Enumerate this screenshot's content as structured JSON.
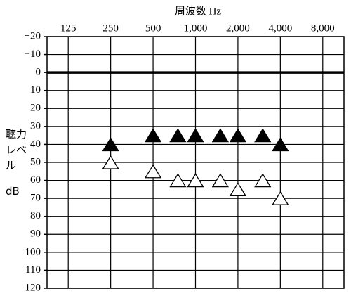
{
  "chart_data": {
    "type": "audiogram",
    "x_label": "周波数 Hz",
    "y_label": "聴力レベル",
    "y_unit": "dB",
    "xscale": "log",
    "xlim": [
      88.4,
      11314
    ],
    "xticks": [
      125,
      250,
      500,
      {
        "value": 1000,
        "label": "1,000"
      },
      {
        "value": 2000,
        "label": "2,000"
      },
      {
        "value": 4000,
        "label": "4,000"
      },
      {
        "value": 8000,
        "label": "8,000"
      }
    ],
    "ylim": [
      -20,
      120
    ],
    "y_inverted": true,
    "yticks": [
      {
        "value": -20,
        "label": "−20"
      },
      {
        "value": -10,
        "label": "−10"
      },
      0,
      10,
      20,
      30,
      40,
      50,
      60,
      70,
      80,
      90,
      100,
      110,
      120
    ],
    "reference_line": 0,
    "grid": true,
    "x": [
      250,
      500,
      750,
      1000,
      1500,
      2000,
      3000,
      4000
    ],
    "series": [
      {
        "marker": "triangle",
        "color": "#000000",
        "values": [
          40,
          35,
          35,
          35,
          35,
          35,
          35,
          40
        ]
      },
      {
        "marker": "triangle",
        "color": "#ffffff",
        "values": [
          50,
          55,
          60,
          60,
          60,
          65,
          60,
          70
        ]
      }
    ]
  }
}
